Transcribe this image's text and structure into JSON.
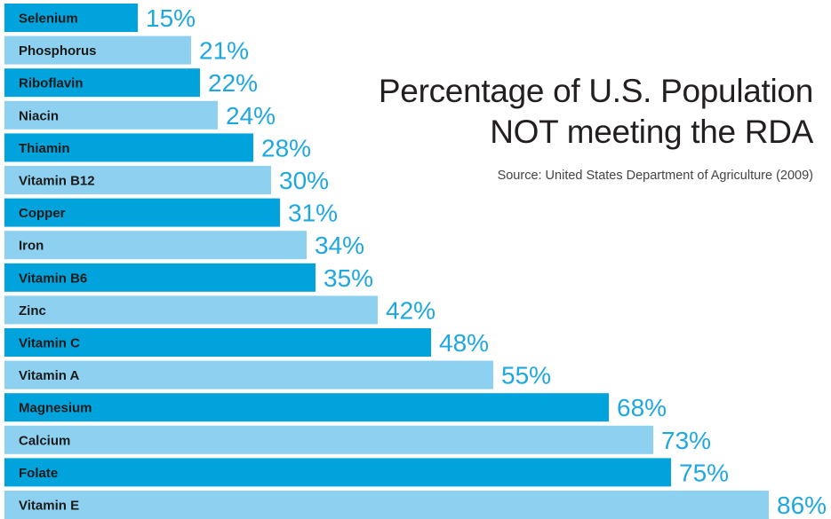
{
  "chart_data": {
    "type": "bar",
    "orientation": "horizontal",
    "title_lines": [
      "Percentage of U.S. Population",
      "NOT meeting the RDA"
    ],
    "source": "Source: United States Department of Agriculture (2009)",
    "categories": [
      "Selenium",
      "Phosphorus",
      "Riboflavin",
      "Niacin",
      "Thiamin",
      "Vitamin B12",
      "Copper",
      "Iron",
      "Vitamin B6",
      "Zinc",
      "Vitamin C",
      "Vitamin A",
      "Magnesium",
      "Calcium",
      "Folate",
      "Vitamin E"
    ],
    "values": [
      15,
      21,
      22,
      24,
      28,
      30,
      31,
      34,
      35,
      42,
      48,
      55,
      68,
      73,
      75,
      86
    ],
    "value_labels": [
      "15%",
      "21%",
      "22%",
      "24%",
      "28%",
      "30%",
      "31%",
      "34%",
      "35%",
      "42%",
      "48%",
      "55%",
      "68%",
      "73%",
      "75%",
      "86%"
    ],
    "unit": "%",
    "xlim": [
      0,
      86
    ],
    "colors": {
      "bar_dark": "#00a3dc",
      "bar_light": "#8dd0ef",
      "value_text": "#1fa7e0",
      "category_text": "#1a1a1a"
    }
  }
}
